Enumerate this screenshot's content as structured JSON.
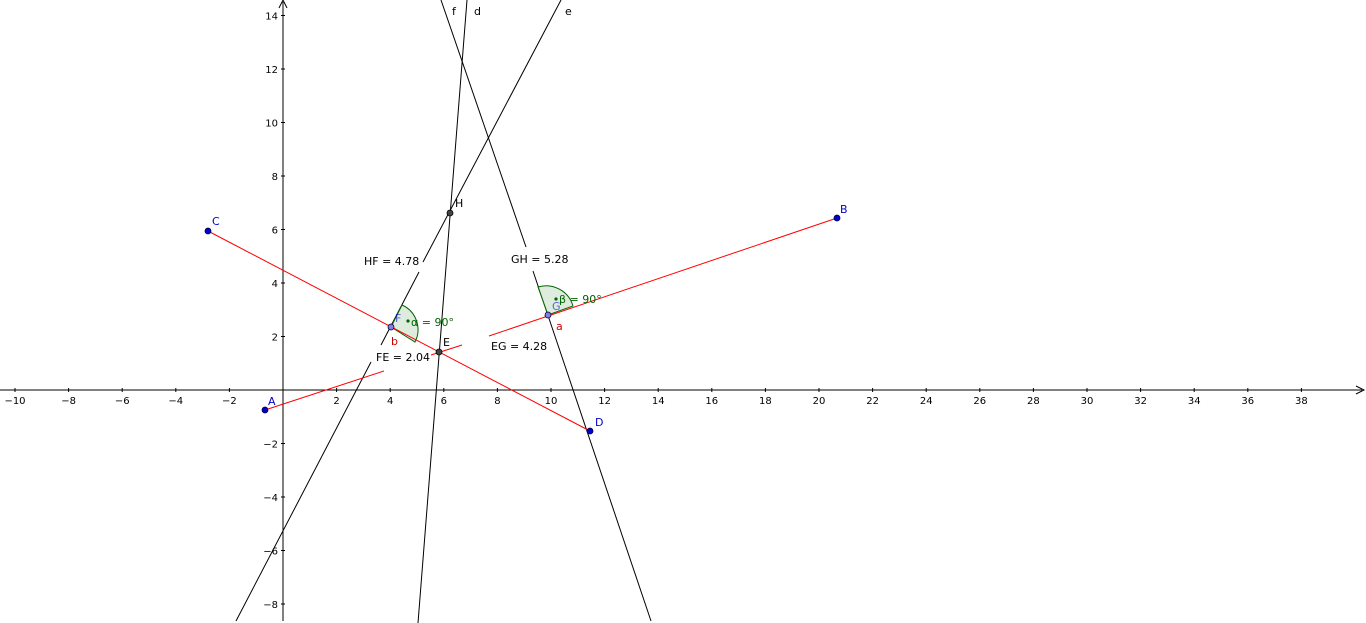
{
  "axes": {
    "x_ticks": [
      "−10",
      "−8",
      "−6",
      "−4",
      "−2",
      "2",
      "4",
      "6",
      "8",
      "10",
      "12",
      "14",
      "16",
      "18",
      "20",
      "22",
      "24",
      "26",
      "28",
      "30",
      "32",
      "34",
      "36",
      "38"
    ],
    "x_values": [
      -10,
      -8,
      -6,
      -4,
      -2,
      2,
      4,
      6,
      8,
      10,
      12,
      14,
      16,
      18,
      20,
      22,
      24,
      26,
      28,
      30,
      32,
      34,
      36,
      38
    ],
    "y_ticks": [
      "14",
      "12",
      "10",
      "8",
      "6",
      "4",
      "2",
      "−2",
      "−4",
      "−6",
      "−8"
    ],
    "y_values": [
      14,
      12,
      10,
      8,
      6,
      4,
      2,
      -2,
      -4,
      -6,
      -8
    ]
  },
  "points": {
    "A": {
      "label": "A",
      "x": -0.7,
      "y": -0.8
    },
    "B": {
      "label": "B",
      "x": 20.6,
      "y": 6.4
    },
    "C": {
      "label": "C",
      "x": -2.8,
      "y": 5.95
    },
    "D": {
      "label": "D",
      "x": 11.4,
      "y": -1.55
    },
    "E": {
      "label": "E",
      "x": 5.85,
      "y": 1.4
    },
    "F": {
      "label": "F",
      "x": 4.0,
      "y": 2.35
    },
    "G": {
      "label": "G",
      "x": 9.9,
      "y": 2.8
    },
    "H": {
      "label": "H",
      "x": 6.25,
      "y": 6.6
    }
  },
  "segments": {
    "a": {
      "label": "a"
    },
    "b": {
      "label": "b"
    }
  },
  "lines": {
    "d": {
      "label": "d"
    },
    "e": {
      "label": "e"
    },
    "f": {
      "label": "f"
    }
  },
  "angles": {
    "alpha": {
      "text": "α = 90°"
    },
    "beta": {
      "text": "β = 90°"
    }
  },
  "measures": {
    "HF": "HF = 4.78",
    "GH": "GH = 5.28",
    "FE": "FE = 2.04",
    "EG": "EG = 4.28"
  },
  "colors": {
    "segment": "#ff0000",
    "line": "#000000",
    "point_free": "#0000cc",
    "point_dependent": "#333333",
    "angle_fill": "#c8e0c8",
    "angle_stroke": "#006400"
  }
}
